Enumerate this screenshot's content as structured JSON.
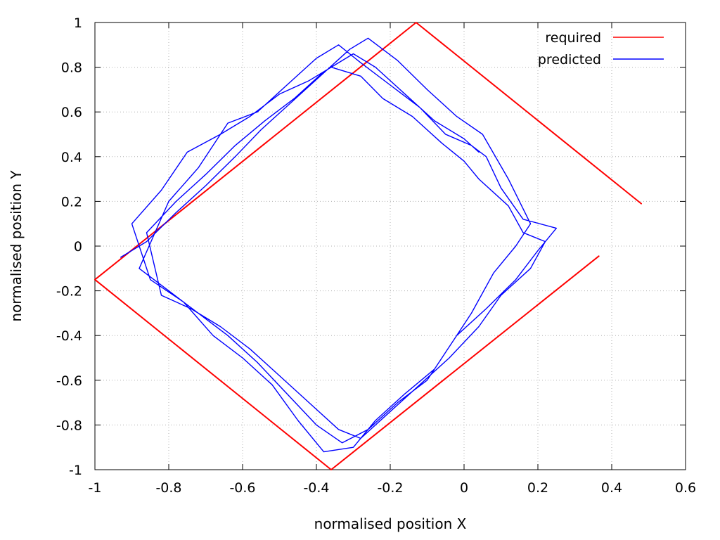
{
  "chart_data": {
    "type": "line",
    "title": "",
    "xlabel": "normalised position X",
    "ylabel": "normalised position Y",
    "xlim": [
      -1,
      0.6
    ],
    "ylim": [
      -1,
      1
    ],
    "grid": true,
    "legend_position": "top-right",
    "x_ticks": [
      -1,
      -0.8,
      -0.6,
      -0.4,
      -0.2,
      0,
      0.2,
      0.4,
      0.6
    ],
    "x_tick_labels": [
      "-1",
      "-0.8",
      "-0.6",
      "-0.4",
      "-0.2",
      "0",
      "0.2",
      "0.4",
      "0.6"
    ],
    "y_ticks": [
      -1,
      -0.8,
      -0.6,
      -0.4,
      -0.2,
      0,
      0.2,
      0.4,
      0.6,
      0.8,
      1
    ],
    "y_tick_labels": [
      "-1",
      "-0.8",
      "-0.6",
      "-0.4",
      "-0.2",
      "0",
      "0.2",
      "0.4",
      "0.6",
      "0.8",
      "1"
    ],
    "series": [
      {
        "name": "required",
        "color": "#ff0000",
        "points": [
          [
            0.48,
            0.19
          ],
          [
            -0.13,
            1.0
          ],
          [
            -1.0,
            -0.15
          ],
          [
            -0.36,
            -1.0
          ],
          [
            0.365,
            -0.045
          ]
        ]
      },
      {
        "name": "predicted",
        "color": "#0000ff",
        "points": [
          [
            -0.93,
            -0.05
          ],
          [
            -0.86,
            0.02
          ],
          [
            -0.78,
            0.15
          ],
          [
            -0.7,
            0.27
          ],
          [
            -0.62,
            0.4
          ],
          [
            -0.55,
            0.52
          ],
          [
            -0.47,
            0.64
          ],
          [
            -0.39,
            0.76
          ],
          [
            -0.31,
            0.88
          ],
          [
            -0.26,
            0.93
          ],
          [
            -0.18,
            0.83
          ],
          [
            -0.1,
            0.7
          ],
          [
            -0.02,
            0.58
          ],
          [
            0.05,
            0.5
          ],
          [
            0.12,
            0.3
          ],
          [
            0.18,
            0.1
          ],
          [
            0.14,
            0.0
          ],
          [
            0.08,
            -0.12
          ],
          [
            0.02,
            -0.3
          ],
          [
            -0.04,
            -0.45
          ],
          [
            -0.1,
            -0.6
          ],
          [
            -0.18,
            -0.7
          ],
          [
            -0.26,
            -0.82
          ],
          [
            -0.33,
            -0.88
          ],
          [
            -0.4,
            -0.8
          ],
          [
            -0.48,
            -0.66
          ],
          [
            -0.56,
            -0.52
          ],
          [
            -0.64,
            -0.4
          ],
          [
            -0.72,
            -0.3
          ],
          [
            -0.8,
            -0.2
          ],
          [
            -0.88,
            -0.1
          ],
          [
            -0.8,
            0.2
          ],
          [
            -0.72,
            0.35
          ],
          [
            -0.64,
            0.55
          ],
          [
            -0.56,
            0.6
          ],
          [
            -0.48,
            0.72
          ],
          [
            -0.4,
            0.84
          ],
          [
            -0.34,
            0.9
          ],
          [
            -0.28,
            0.82
          ],
          [
            -0.2,
            0.72
          ],
          [
            -0.12,
            0.62
          ],
          [
            -0.05,
            0.5
          ],
          [
            0.02,
            0.45
          ],
          [
            0.06,
            0.4
          ],
          [
            0.1,
            0.26
          ],
          [
            0.16,
            0.12
          ],
          [
            0.25,
            0.08
          ],
          [
            0.2,
            -0.02
          ],
          [
            0.14,
            -0.15
          ],
          [
            0.06,
            -0.28
          ],
          [
            -0.02,
            -0.4
          ],
          [
            -0.08,
            -0.55
          ],
          [
            -0.16,
            -0.66
          ],
          [
            -0.24,
            -0.78
          ],
          [
            -0.3,
            -0.9
          ],
          [
            -0.38,
            -0.92
          ],
          [
            -0.45,
            -0.78
          ],
          [
            -0.52,
            -0.62
          ],
          [
            -0.6,
            -0.5
          ],
          [
            -0.68,
            -0.4
          ],
          [
            -0.76,
            -0.25
          ],
          [
            -0.85,
            -0.15
          ],
          [
            -0.9,
            0.1
          ],
          [
            -0.82,
            0.25
          ],
          [
            -0.75,
            0.42
          ],
          [
            -0.66,
            0.5
          ],
          [
            -0.58,
            0.58
          ],
          [
            -0.5,
            0.68
          ],
          [
            -0.42,
            0.74
          ],
          [
            -0.36,
            0.8
          ],
          [
            -0.28,
            0.76
          ],
          [
            -0.22,
            0.66
          ],
          [
            -0.14,
            0.58
          ],
          [
            -0.06,
            0.46
          ],
          [
            0.0,
            0.38
          ],
          [
            0.04,
            0.3
          ],
          [
            0.12,
            0.18
          ],
          [
            0.16,
            0.06
          ],
          [
            0.22,
            0.02
          ],
          [
            0.18,
            -0.1
          ],
          [
            0.1,
            -0.22
          ],
          [
            0.04,
            -0.36
          ],
          [
            -0.04,
            -0.5
          ],
          [
            -0.12,
            -0.62
          ],
          [
            -0.2,
            -0.74
          ],
          [
            -0.28,
            -0.86
          ],
          [
            -0.34,
            -0.82
          ],
          [
            -0.42,
            -0.7
          ],
          [
            -0.5,
            -0.58
          ],
          [
            -0.58,
            -0.46
          ],
          [
            -0.66,
            -0.36
          ],
          [
            -0.74,
            -0.28
          ],
          [
            -0.82,
            -0.22
          ],
          [
            -0.86,
            0.06
          ],
          [
            -0.78,
            0.2
          ],
          [
            -0.7,
            0.32
          ],
          [
            -0.62,
            0.45
          ],
          [
            -0.54,
            0.56
          ],
          [
            -0.46,
            0.66
          ],
          [
            -0.38,
            0.78
          ],
          [
            -0.3,
            0.86
          ],
          [
            -0.24,
            0.8
          ],
          [
            -0.16,
            0.68
          ],
          [
            -0.08,
            0.56
          ],
          [
            0.0,
            0.48
          ],
          [
            0.04,
            0.42
          ]
        ]
      }
    ]
  }
}
